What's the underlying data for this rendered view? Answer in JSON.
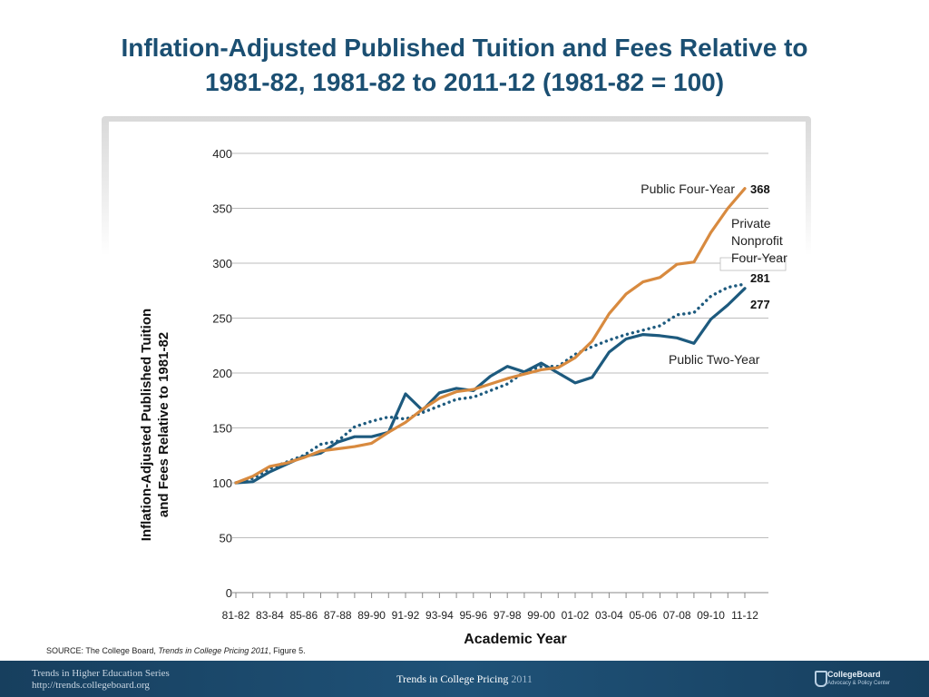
{
  "title": {
    "line1": "Inflation-Adjusted Published Tuition and Fees Relative to",
    "line2": "1981-82, 1981-82 to 2011-12 (1981-82 = 100)"
  },
  "source": {
    "prefix": "SOURCE: The College Board, ",
    "publication": "Trends in College Pricing 2011",
    "suffix": ", Figure 5."
  },
  "footer": {
    "series_line1": "Trends in Higher Education Series",
    "series_line2": "http://trends.collegeboard.org",
    "center_main": "Trends in College Pricing",
    "center_year": "2011",
    "logo_name": "CollegeBoard",
    "logo_sub": "Advocacy & Policy Center"
  },
  "colors": {
    "public_four_year": "#d88a3f",
    "private_nonprofit": "#1d5a7e",
    "public_two_year": "#1d5a7e",
    "grid": "#bdbdbd",
    "title": "#1b4f72"
  },
  "chart_data": {
    "type": "line",
    "xlabel": "Academic Year",
    "ylabel_line1": "Inflation-Adjusted Published Tuition",
    "ylabel_line2": "and Fees Relative to 1981-82",
    "ylim": [
      0,
      400
    ],
    "yticks": [
      0,
      50,
      100,
      150,
      200,
      250,
      300,
      350,
      400
    ],
    "grid": true,
    "x": [
      "81-82",
      "82-83",
      "83-84",
      "84-85",
      "85-86",
      "86-87",
      "87-88",
      "88-89",
      "89-90",
      "90-91",
      "91-92",
      "92-93",
      "93-94",
      "94-95",
      "95-96",
      "96-97",
      "97-98",
      "98-99",
      "99-00",
      "00-01",
      "01-02",
      "02-03",
      "03-04",
      "04-05",
      "05-06",
      "06-07",
      "07-08",
      "08-09",
      "09-10",
      "10-11",
      "11-12"
    ],
    "xtick_labels": [
      "81-82",
      "83-84",
      "85-86",
      "87-88",
      "89-90",
      "91-92",
      "93-94",
      "95-96",
      "97-98",
      "99-00",
      "01-02",
      "03-04",
      "05-06",
      "07-08",
      "09-10",
      "11-12"
    ],
    "series": [
      {
        "name": "Public Four-Year",
        "style": "solid",
        "color": "#d88a3f",
        "values": [
          100,
          106,
          115,
          118,
          123,
          129,
          131,
          133,
          136,
          146,
          155,
          167,
          177,
          183,
          185,
          190,
          195,
          199,
          203,
          205,
          214,
          229,
          254,
          272,
          283,
          287,
          299,
          301,
          328,
          350,
          368
        ],
        "end_label": "368"
      },
      {
        "name": "Private Nonprofit Four-Year",
        "name_lines": [
          "Private",
          "Nonprofit",
          "Four-Year"
        ],
        "style": "dotted",
        "color": "#1d5a7e",
        "values": [
          100,
          104,
          113,
          119,
          125,
          135,
          138,
          151,
          156,
          160,
          158,
          164,
          170,
          176,
          178,
          184,
          190,
          201,
          206,
          206,
          217,
          224,
          230,
          235,
          239,
          243,
          253,
          255,
          270,
          278,
          281
        ],
        "end_label": "281"
      },
      {
        "name": "Public Two-Year",
        "style": "solid",
        "color": "#1d5a7e",
        "values": [
          100,
          101,
          110,
          117,
          124,
          127,
          137,
          142,
          142,
          146,
          181,
          166,
          182,
          186,
          184,
          197,
          206,
          201,
          209,
          200,
          191,
          196,
          219,
          231,
          235,
          234,
          232,
          227,
          249,
          262,
          277
        ],
        "end_label": "277"
      }
    ]
  }
}
